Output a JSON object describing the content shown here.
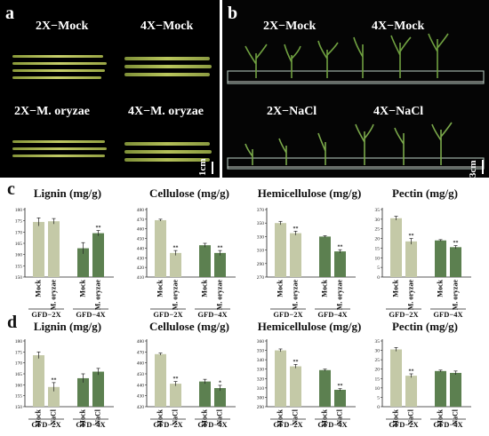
{
  "panel_a": {
    "letter": "a",
    "labels": [
      "2X−Mock",
      "4X−Mock",
      "2X−M. oryzae",
      "4X−M. oryzae"
    ],
    "scale": "1cm"
  },
  "panel_b": {
    "letter": "b",
    "labels": [
      "2X−Mock",
      "4X−Mock",
      "2X−NaCl",
      "4X−NaCl"
    ],
    "scale": "3cm"
  },
  "panel_c_letter": "c",
  "panel_d_letter": "d",
  "colors": {
    "light": "#c4c9a7",
    "dark": "#5c8050"
  },
  "chart_data": [
    {
      "type": "bar",
      "panel": "c",
      "title": "Lignin (mg/g)",
      "categories": [
        "Mock",
        "M. oryzae",
        "Mock",
        "M. oryzae"
      ],
      "groups": [
        "GFD−2X",
        "GFD−4X"
      ],
      "values": [
        174.5,
        174.8,
        162.8,
        169.5
      ],
      "errors": [
        1.8,
        1.2,
        2.5,
        1.2
      ],
      "significance": [
        "",
        "",
        "",
        "**"
      ],
      "yticks": [
        150,
        155,
        160,
        165,
        170,
        175,
        180
      ],
      "ylim": [
        150,
        180
      ]
    },
    {
      "type": "bar",
      "panel": "c",
      "title": "Cellulose (mg/g)",
      "categories": [
        "Mock",
        "M. oryzae",
        "Mock",
        "M. oryzae"
      ],
      "groups": [
        "GFD−2X",
        "GFD−4X"
      ],
      "values": [
        469,
        435,
        443,
        435
      ],
      "errors": [
        1.0,
        2.5,
        2.0,
        2.5
      ],
      "significance": [
        "",
        "**",
        "",
        "**"
      ],
      "yticks": [
        410,
        420,
        430,
        440,
        450,
        460,
        470,
        480
      ],
      "ylim": [
        410,
        480
      ]
    },
    {
      "type": "bar",
      "panel": "c",
      "title": "Hemicellulose (mg/g)",
      "categories": [
        "Mock",
        "M. oryzae",
        "Mock",
        "M. oryzae"
      ],
      "groups": [
        "GFD−2X",
        "GFD−4X"
      ],
      "values": [
        350,
        335,
        330,
        308
      ],
      "errors": [
        2.5,
        3.0,
        1.2,
        2.5
      ],
      "significance": [
        "",
        "**",
        "",
        "**"
      ],
      "yticks": [
        270,
        290,
        310,
        330,
        350,
        370
      ],
      "ylim": [
        270,
        370
      ]
    },
    {
      "type": "bar",
      "panel": "c",
      "title": "Pectin (mg/g)",
      "categories": [
        "Mock",
        "M. oryzae",
        "Mock",
        "M. oryzae"
      ],
      "groups": [
        "GFD−2X",
        "GFD−4X"
      ],
      "values": [
        30.5,
        18.5,
        19.0,
        15.5
      ],
      "errors": [
        1.0,
        1.5,
        0.4,
        0.8
      ],
      "significance": [
        "",
        "**",
        "",
        "**"
      ],
      "yticks": [
        0,
        5,
        10,
        15,
        20,
        25,
        30,
        35
      ],
      "ylim": [
        0,
        35
      ]
    },
    {
      "type": "bar",
      "panel": "d",
      "title": "Lignin (mg/g)",
      "categories": [
        "Mock",
        "NaCl",
        "Mock",
        "NaCl"
      ],
      "groups": [
        "GFD−2X",
        "GFD−4X"
      ],
      "values": [
        173.5,
        159,
        163,
        166
      ],
      "errors": [
        1.5,
        2.0,
        2.0,
        1.5
      ],
      "significance": [
        "",
        "**",
        "",
        ""
      ],
      "yticks": [
        150,
        155,
        160,
        165,
        170,
        175,
        180
      ],
      "ylim": [
        150,
        180
      ]
    },
    {
      "type": "bar",
      "panel": "d",
      "title": "Cellulose (mg/g)",
      "categories": [
        "Mock",
        "NaCl",
        "Mock",
        "NaCl"
      ],
      "groups": [
        "GFD−2X",
        "GFD−4X"
      ],
      "values": [
        468,
        441,
        443,
        437
      ],
      "errors": [
        1.0,
        2.0,
        2.0,
        2.5
      ],
      "significance": [
        "",
        "**",
        "",
        "*"
      ],
      "yticks": [
        420,
        430,
        440,
        450,
        460,
        470,
        480
      ],
      "ylim": [
        420,
        480
      ]
    },
    {
      "type": "bar",
      "panel": "d",
      "title": "Hemicellulose (mg/g)",
      "categories": [
        "Mock",
        "NaCl",
        "Mock",
        "NaCl"
      ],
      "groups": [
        "GFD−2X",
        "GFD−4X"
      ],
      "values": [
        350,
        333,
        329,
        308
      ],
      "errors": [
        1.5,
        2.0,
        1.0,
        1.2
      ],
      "significance": [
        "",
        "**",
        "",
        "**"
      ],
      "yticks": [
        290,
        300,
        310,
        320,
        330,
        340,
        350,
        360
      ],
      "ylim": [
        290,
        360
      ]
    },
    {
      "type": "bar",
      "panel": "d",
      "title": "Pectin (mg/g)",
      "categories": [
        "Mock",
        "NaCl",
        "Mock",
        "NaCl"
      ],
      "groups": [
        "GFD−2X",
        "GFD−4X"
      ],
      "values": [
        30.5,
        16.5,
        19.0,
        18.0
      ],
      "errors": [
        1.0,
        1.0,
        0.5,
        1.0
      ],
      "significance": [
        "",
        "**",
        "",
        ""
      ],
      "yticks": [
        0,
        5,
        10,
        15,
        20,
        25,
        30,
        35
      ],
      "ylim": [
        0,
        35
      ]
    }
  ]
}
